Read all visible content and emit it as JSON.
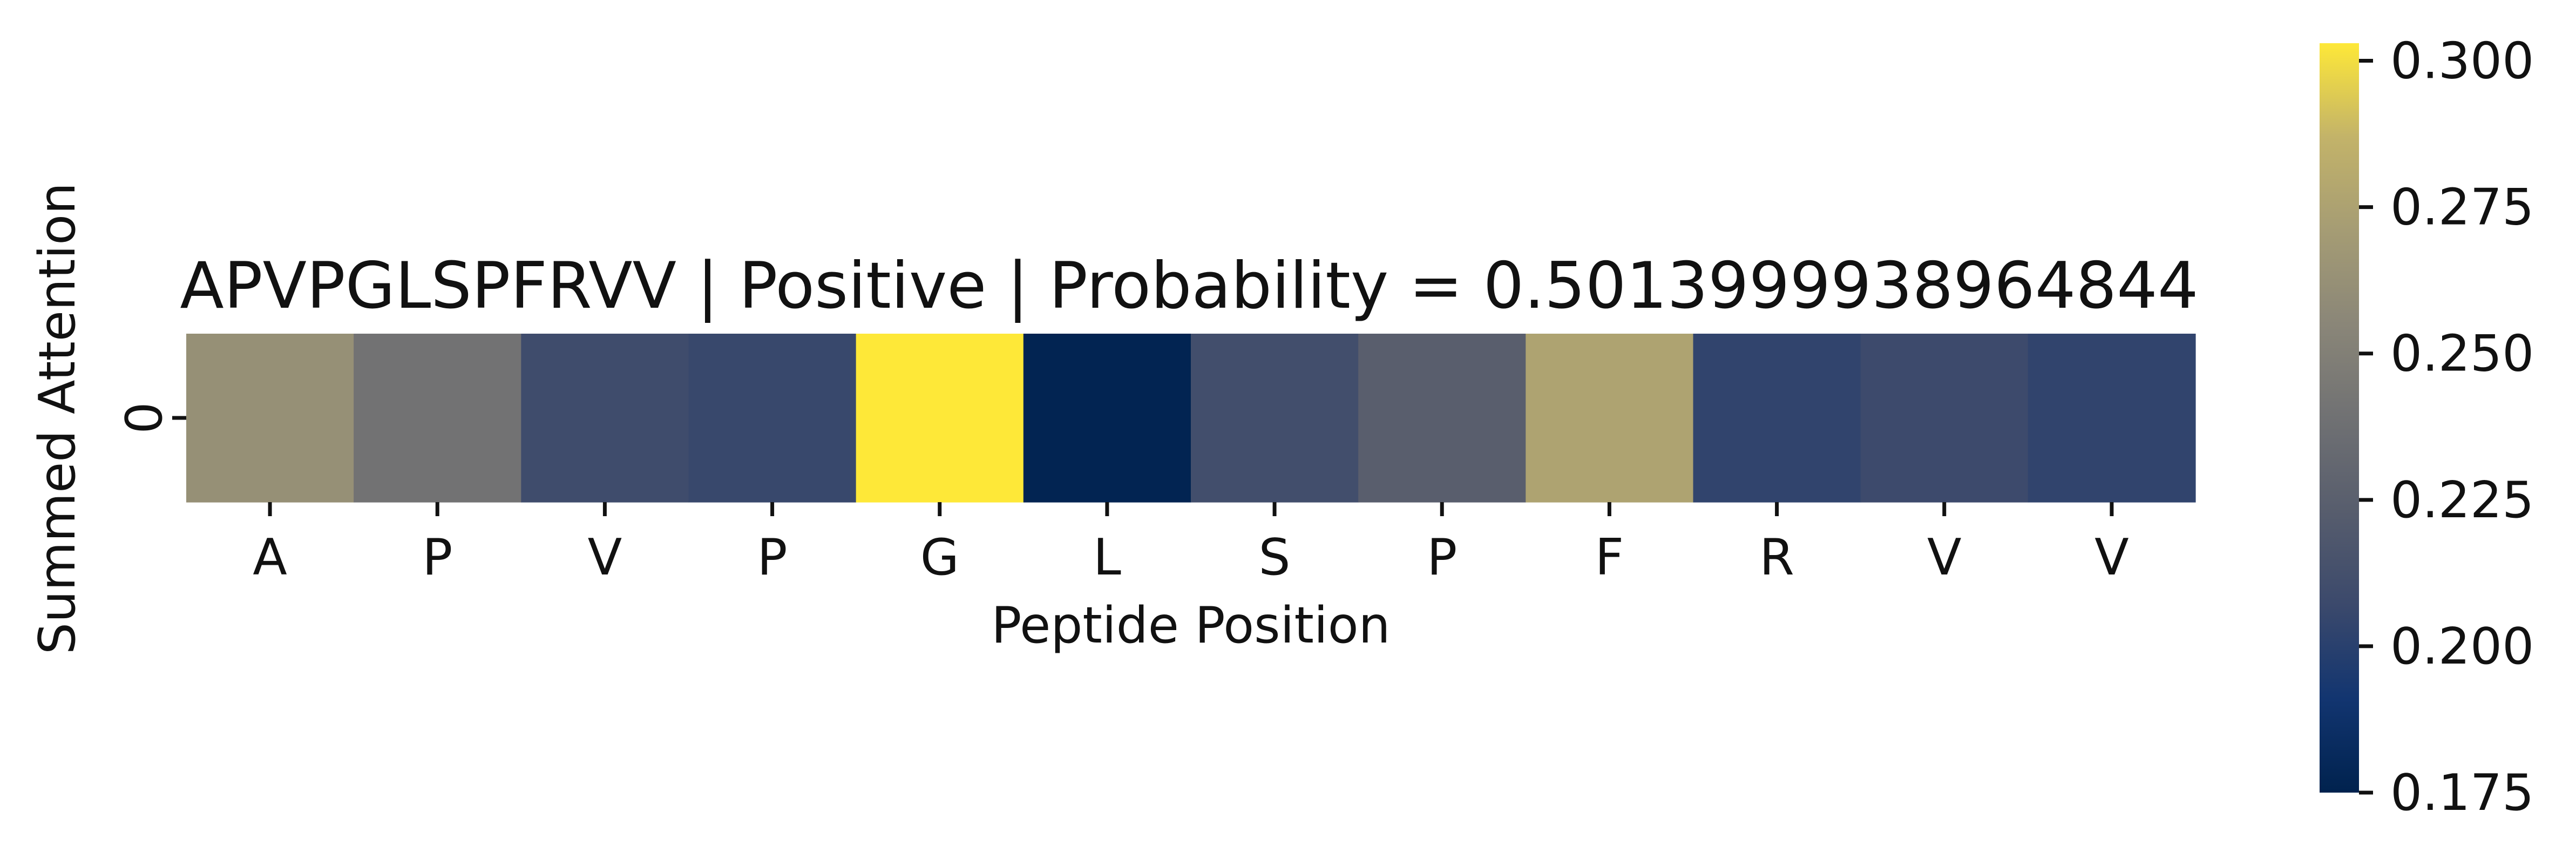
{
  "chart_data": {
    "type": "heatmap",
    "title": "APVPGLSPFRVV | Positive | Probability = 0.5013999938964844",
    "xlabel": "Peptide Position",
    "ylabel": "Summed Attention",
    "row_labels": [
      "0"
    ],
    "categories": [
      "A",
      "P",
      "V",
      "P",
      "G",
      "L",
      "S",
      "P",
      "F",
      "R",
      "V",
      "V"
    ],
    "values": [
      [
        0.262,
        0.24,
        0.209,
        0.206,
        0.303,
        0.177,
        0.211,
        0.224,
        0.276,
        0.203,
        0.208,
        0.203
      ]
    ],
    "colormap": "cividis",
    "colorbar": {
      "vmin": 0.175,
      "vmax": 0.303,
      "ticks": [
        0.175,
        0.2,
        0.225,
        0.25,
        0.275,
        0.3
      ],
      "tick_labels": [
        "0.175",
        "0.200",
        "0.225",
        "0.250",
        "0.275",
        "0.300"
      ]
    }
  }
}
